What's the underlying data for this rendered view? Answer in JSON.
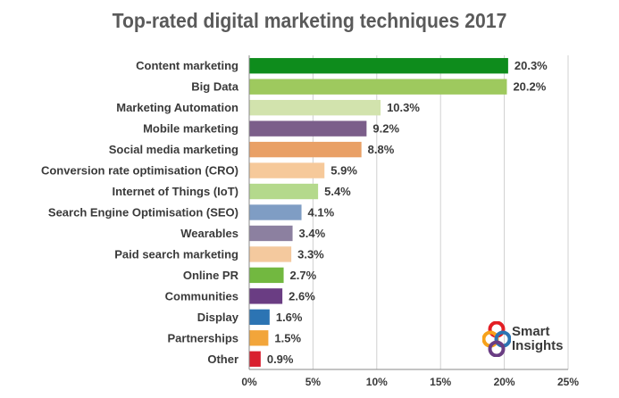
{
  "chart_data": {
    "type": "bar",
    "orientation": "horizontal",
    "title": "Top-rated digital marketing techniques 2017",
    "categories": [
      "Content marketing",
      "Big Data",
      "Marketing Automation",
      "Mobile marketing",
      "Social media marketing",
      "Conversion rate optimisation (CRO)",
      "Internet of Things (IoT)",
      "Search Engine Optimisation (SEO)",
      "Wearables",
      "Paid search marketing",
      "Online PR",
      "Communities",
      "Display",
      "Partnerships",
      "Other"
    ],
    "values": [
      20.3,
      20.2,
      10.3,
      9.2,
      8.8,
      5.9,
      5.4,
      4.1,
      3.4,
      3.3,
      2.7,
      2.6,
      1.6,
      1.5,
      0.9
    ],
    "value_labels": [
      "20.3%",
      "20.2%",
      "10.3%",
      "9.2%",
      "8.8%",
      "5.9%",
      "5.4%",
      "4.1%",
      "3.4%",
      "3.3%",
      "2.7%",
      "2.6%",
      "1.6%",
      "1.5%",
      "0.9%"
    ],
    "colors": [
      "#0e8c1c",
      "#9ec95e",
      "#d2e3ad",
      "#7b5e8a",
      "#e9a066",
      "#f6c99a",
      "#b4d98c",
      "#7f9dc4",
      "#8c80a0",
      "#f4c99e",
      "#72b840",
      "#6a3d83",
      "#2c74b3",
      "#f2a53a",
      "#d9202f"
    ],
    "xlim": [
      0,
      25
    ],
    "xticks": [
      0,
      5,
      10,
      15,
      20,
      25
    ],
    "xtick_labels": [
      "0%",
      "5%",
      "10%",
      "15%",
      "20%",
      "25%"
    ],
    "grid": true,
    "xlabel": "",
    "ylabel": ""
  },
  "logo": {
    "line1": "Smart",
    "line2": "Insights",
    "colors": [
      "#e31e24",
      "#f7a21b",
      "#2c74b3",
      "#6a3d83"
    ]
  }
}
